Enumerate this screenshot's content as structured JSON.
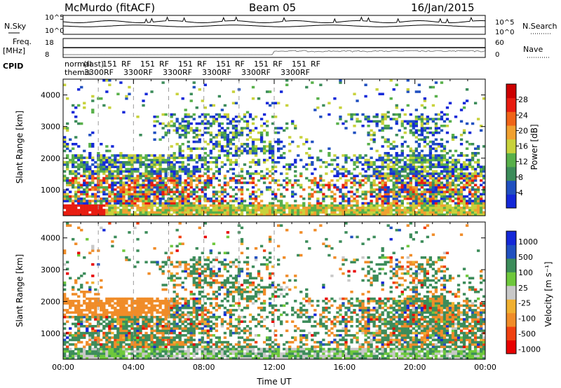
{
  "header": {
    "station": "McMurdo (fitACF)",
    "beam": "Beam 05",
    "date": "16/Jan/2015"
  },
  "noise_panel": {
    "left_label": "N.Sky",
    "right_label": "N.Search",
    "left_ticks": [
      "10^5",
      "10^0"
    ],
    "right_ticks": [
      "10^5",
      "10^0"
    ]
  },
  "freq_panel": {
    "left_label_1": "Freq.",
    "left_label_2": "[MHz]",
    "right_label": "Nave",
    "left_ticks": [
      "18",
      "8"
    ],
    "right_ticks": [
      "60",
      "0"
    ]
  },
  "cpid": {
    "label": "CPID",
    "row1": [
      "normal",
      "(fast)",
      "151",
      "RF",
      "151",
      "RF",
      "151",
      "RF",
      "151",
      "RF",
      "151",
      "RF",
      "151",
      "RF"
    ],
    "row2": [
      "themis",
      "3300",
      "RF",
      "3300",
      "RF",
      "3300",
      "RF",
      "3300",
      "RF",
      "3300",
      "RF",
      "3300",
      "RF"
    ]
  },
  "colors": {
    "power_scale": [
      "#1428d8",
      "#2050c0",
      "#3c8c5a",
      "#58b04a",
      "#c8d23c",
      "#f0a030",
      "#f06418",
      "#e81c10",
      "#cc0000"
    ],
    "velocity_scale": [
      "#e80000",
      "#f04010",
      "#f08c28",
      "#f0b030",
      "#c8c8c8",
      "#6ec83c",
      "#3c8c5a",
      "#2050c0",
      "#1428d8"
    ]
  },
  "chart_data": [
    {
      "type": "heatmap",
      "title": "Power",
      "ylabel": "Slant Range [km]",
      "ylim": [
        180,
        4500
      ],
      "yticks": [
        1000,
        2000,
        3000,
        4000
      ],
      "colorbar_label": "Power [dB]",
      "colorbar_ticks": [
        4,
        8,
        12,
        16,
        20,
        24,
        28
      ],
      "colorbar_range": [
        0,
        32
      ]
    },
    {
      "type": "heatmap",
      "title": "Velocity",
      "ylabel": "Slant Range [km]",
      "xlabel": "Time UT",
      "ylim": [
        180,
        4500
      ],
      "yticks": [
        1000,
        2000,
        3000,
        4000
      ],
      "xticks": [
        "00:00",
        "04:00",
        "08:00",
        "12:00",
        "16:00",
        "20:00",
        "00:00"
      ],
      "xlim_hours": [
        0,
        24
      ],
      "colorbar_label": "Velocity [m s⁻¹]",
      "colorbar_ticks": [
        "1000",
        "500",
        "100",
        "25",
        "-25",
        "-100",
        "-500",
        "-1000"
      ]
    }
  ]
}
